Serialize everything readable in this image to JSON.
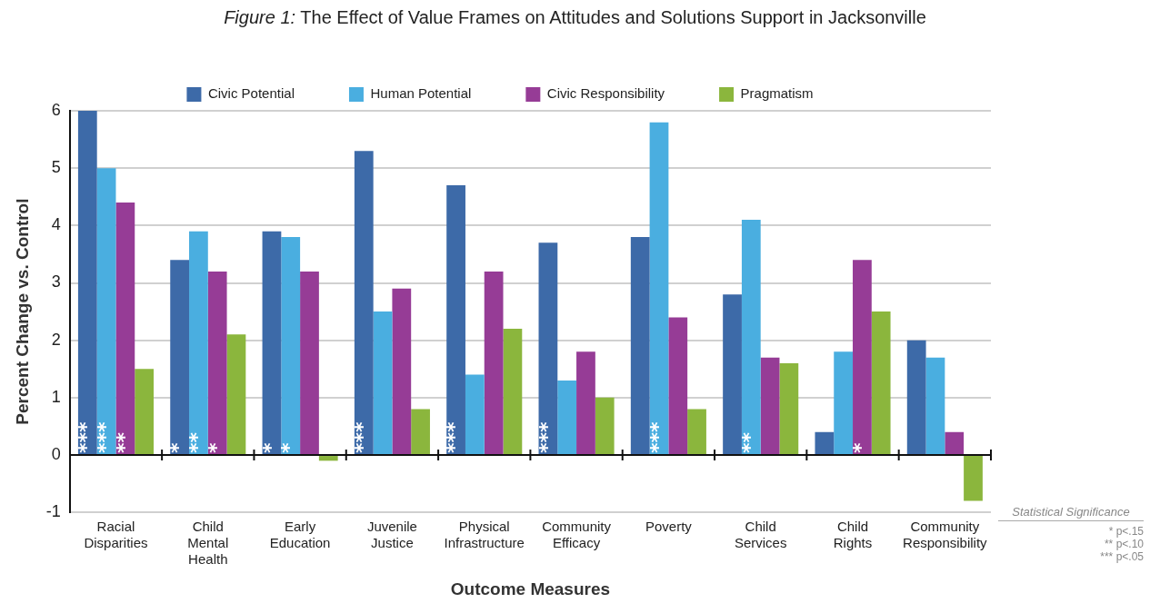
{
  "chart_data": {
    "type": "bar",
    "title": "Figure 1: The Effect of Value Frames on Attitudes and Solutions Support in Jacksonville",
    "categories": [
      "Racial\nDisparities",
      "Child\nMental\nHealth",
      "Early\nEducation",
      "Juvenile\nJustice",
      "Physical\nInfrastructure",
      "Community\nEfficacy",
      "Poverty",
      "Child\nServices",
      "Child\nRights",
      "Community\nResponsibility"
    ],
    "series": [
      {
        "name": "Civic Potential",
        "color": "#3d6aa8",
        "values": [
          6.0,
          3.4,
          3.9,
          5.3,
          4.7,
          3.7,
          3.8,
          2.8,
          0.4,
          2.0
        ],
        "value_labels": [
          "***",
          "*",
          "*",
          "***",
          "***",
          "***",
          null,
          null,
          null,
          null
        ]
      },
      {
        "name": "Human Potential",
        "color": "#4aaee0",
        "values": [
          5.0,
          3.9,
          3.8,
          2.5,
          1.4,
          1.3,
          5.8,
          4.1,
          1.8,
          1.7
        ],
        "value_labels": [
          "***",
          "**",
          "*",
          null,
          null,
          null,
          "***",
          "**",
          null,
          null
        ]
      },
      {
        "name": "Civic Responsibility",
        "color": "#963c96",
        "values": [
          4.4,
          3.2,
          3.2,
          2.9,
          3.2,
          1.8,
          2.4,
          1.7,
          3.4,
          0.4
        ],
        "value_labels": [
          "**",
          "*",
          null,
          null,
          null,
          null,
          null,
          null,
          "*",
          null
        ]
      },
      {
        "name": "Pragmatism",
        "color": "#8bb63d",
        "values": [
          1.5,
          2.1,
          -0.1,
          0.8,
          2.2,
          1.0,
          0.8,
          1.6,
          2.5,
          -0.8
        ],
        "value_labels": [
          null,
          null,
          null,
          null,
          null,
          null,
          null,
          null,
          null,
          null
        ]
      }
    ],
    "xlabel": "Outcome Measures",
    "ylabel": "Percent Change vs. Control",
    "ylim": [
      -1,
      6
    ],
    "yticks": [
      -1,
      0,
      1,
      2,
      3,
      4,
      5,
      6
    ],
    "grid": "y",
    "legend": "top",
    "annotations": [
      "Statistical Significance",
      "* p<.15",
      "** p<.10",
      "*** p<.05"
    ]
  }
}
